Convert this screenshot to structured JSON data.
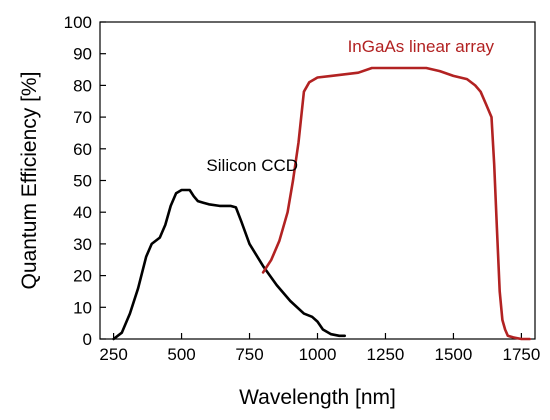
{
  "chart_data": {
    "type": "line",
    "xlabel": "Wavelength [nm]",
    "ylabel": "Quantum Efficiency [%]",
    "xlim": [
      200,
      1800
    ],
    "ylim": [
      0,
      100
    ],
    "xticks": [
      250,
      500,
      750,
      1000,
      1250,
      1500,
      1750
    ],
    "yticks": [
      0,
      10,
      20,
      30,
      40,
      50,
      60,
      70,
      80,
      90,
      100
    ],
    "grid": false,
    "series": [
      {
        "name": "Silicon CCD",
        "color": "#000000",
        "x": [
          250,
          280,
          310,
          340,
          370,
          390,
          420,
          440,
          460,
          480,
          500,
          530,
          545,
          560,
          580,
          600,
          640,
          680,
          700,
          720,
          750,
          800,
          850,
          900,
          950,
          980,
          1000,
          1020,
          1050,
          1080,
          1100
        ],
        "y": [
          0,
          2,
          8,
          16,
          26,
          30,
          32,
          36,
          42,
          46,
          47,
          47,
          45,
          43.5,
          43,
          42.5,
          42,
          42,
          41.5,
          37,
          30,
          23,
          17,
          12,
          8,
          7,
          5.5,
          3,
          1.5,
          1,
          1
        ]
      },
      {
        "name": "InGaAs linear array",
        "color": "#b22222",
        "x": [
          800,
          830,
          860,
          890,
          910,
          930,
          950,
          970,
          1000,
          1050,
          1100,
          1150,
          1200,
          1250,
          1300,
          1350,
          1400,
          1450,
          1500,
          1550,
          1580,
          1600,
          1620,
          1640,
          1650,
          1660,
          1670,
          1680,
          1690,
          1700,
          1720,
          1750,
          1780
        ],
        "y": [
          21,
          25,
          31,
          40,
          50,
          62,
          78,
          81,
          82.5,
          83,
          83.5,
          84,
          85.5,
          85.5,
          85.5,
          85.5,
          85.5,
          84.5,
          83,
          82,
          80,
          78,
          74,
          70,
          55,
          35,
          15,
          6,
          3,
          1,
          0.5,
          0,
          0
        ]
      }
    ],
    "annotations": [
      {
        "text": "Silicon CCD",
        "series": "Silicon CCD"
      },
      {
        "text": "InGaAs linear array",
        "series": "InGaAs linear array"
      }
    ]
  }
}
